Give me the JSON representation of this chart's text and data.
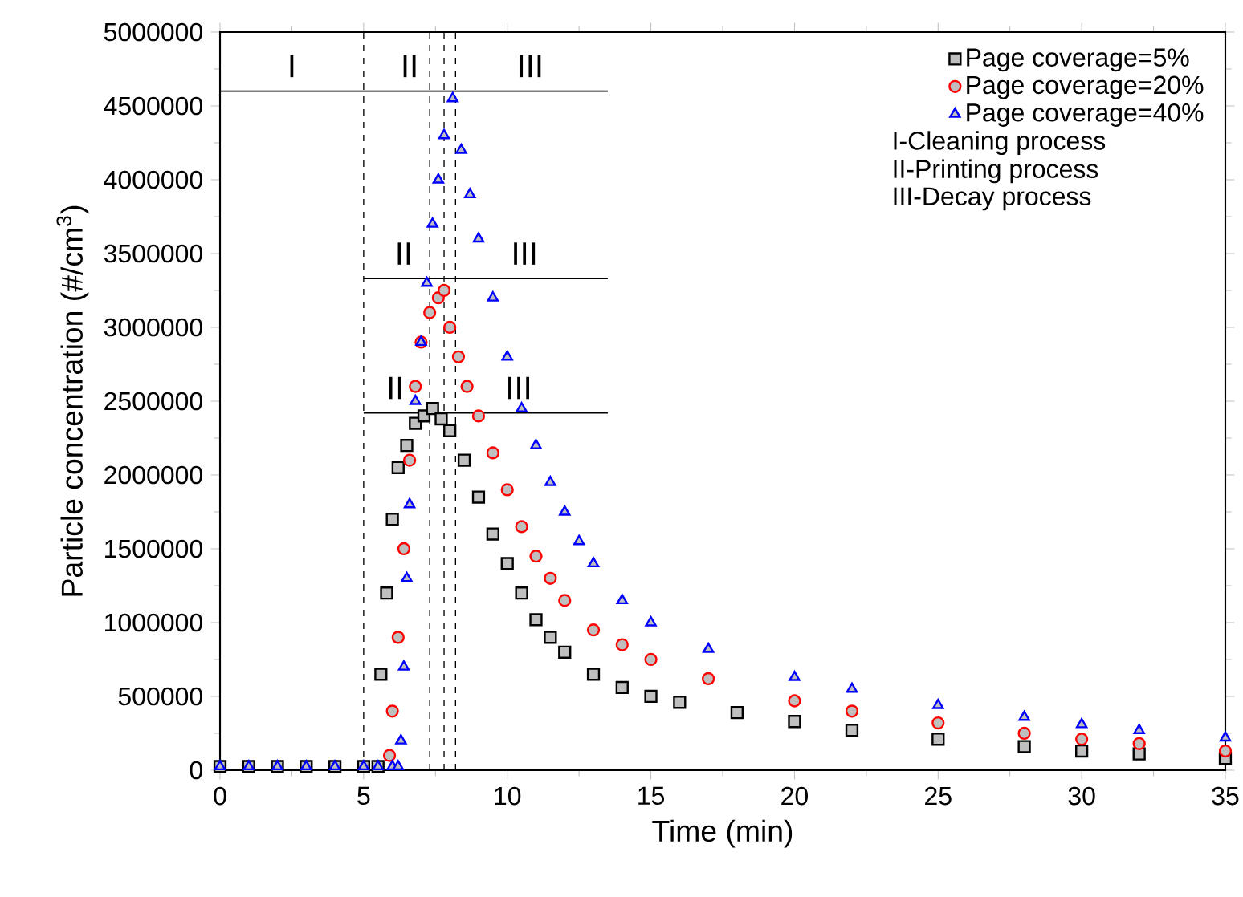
{
  "chart_data": {
    "type": "scatter",
    "xlabel": "Time (min)",
    "ylabel": "Particle concentration (#/cm$^{3}$)",
    "xlim": [
      0,
      35
    ],
    "ylim": [
      0,
      5000000
    ],
    "xticks": [
      0,
      5,
      10,
      15,
      20,
      25,
      30,
      35
    ],
    "yticks": [
      0,
      500000,
      1000000,
      1500000,
      2000000,
      2500000,
      3000000,
      3500000,
      4000000,
      4500000,
      5000000
    ],
    "legend": "top right",
    "grid": false,
    "series": [
      {
        "name": "Page coverage=5%",
        "marker": "square",
        "color": "#000000",
        "x": [
          0,
          1,
          2,
          3,
          4,
          5,
          5.5,
          5.6,
          5.8,
          6.0,
          6.2,
          6.5,
          6.8,
          7.1,
          7.4,
          7.7,
          8.0,
          8.5,
          9,
          9.5,
          10,
          10.5,
          11,
          11.5,
          12,
          13,
          14,
          15,
          16,
          18,
          20,
          22,
          25,
          28,
          30,
          32,
          35
        ],
        "values": [
          25000,
          25000,
          25000,
          25000,
          25000,
          25000,
          25000,
          650000,
          1200000,
          1700000,
          2050000,
          2200000,
          2350000,
          2400000,
          2450000,
          2380000,
          2300000,
          2100000,
          1850000,
          1600000,
          1400000,
          1200000,
          1020000,
          900000,
          800000,
          650000,
          560000,
          500000,
          460000,
          390000,
          330000,
          270000,
          210000,
          160000,
          130000,
          110000,
          80000
        ]
      },
      {
        "name": "Page coverage=20%",
        "marker": "circle",
        "color": "#ff0000",
        "x": [
          5.9,
          6.0,
          6.2,
          6.4,
          6.6,
          6.8,
          7.0,
          7.3,
          7.6,
          7.8,
          8.0,
          8.3,
          8.6,
          9,
          9.5,
          10,
          10.5,
          11,
          11.5,
          12,
          13,
          14,
          15,
          17,
          20,
          22,
          25,
          28,
          30,
          32,
          35
        ],
        "values": [
          100000,
          400000,
          900000,
          1500000,
          2100000,
          2600000,
          2900000,
          3100000,
          3200000,
          3250000,
          3000000,
          2800000,
          2600000,
          2400000,
          2150000,
          1900000,
          1650000,
          1450000,
          1300000,
          1150000,
          950000,
          850000,
          750000,
          620000,
          470000,
          400000,
          320000,
          250000,
          210000,
          180000,
          130000
        ]
      },
      {
        "name": "Page coverage=40%",
        "marker": "triangle",
        "color": "#0000ff",
        "x": [
          0,
          1,
          2,
          3,
          4,
          5,
          5.5,
          6.0,
          6.2,
          6.3,
          6.4,
          6.5,
          6.6,
          6.8,
          7.0,
          7.2,
          7.4,
          7.6,
          7.8,
          8.1,
          8.4,
          8.7,
          9,
          9.5,
          10,
          10.5,
          11,
          11.5,
          12,
          12.5,
          13,
          14,
          15,
          17,
          20,
          22,
          25,
          28,
          30,
          32,
          35
        ],
        "values": [
          25000,
          25000,
          25000,
          25000,
          25000,
          25000,
          25000,
          25000,
          25000,
          200000,
          700000,
          1300000,
          1800000,
          2500000,
          2900000,
          3300000,
          3700000,
          4000000,
          4300000,
          4550000,
          4200000,
          3900000,
          3600000,
          3200000,
          2800000,
          2450000,
          2200000,
          1950000,
          1750000,
          1550000,
          1400000,
          1150000,
          1000000,
          820000,
          630000,
          550000,
          440000,
          360000,
          310000,
          270000,
          220000
        ]
      },
      {
        "type": "line",
        "color": "#000000",
        "x": [
          0,
          5,
          8.2,
          13.5
        ],
        "values": [
          4600000,
          4600000,
          4600000,
          4600000
        ]
      },
      {
        "type": "line",
        "color": "#000000",
        "x": [
          5,
          7.8,
          13.5
        ],
        "values": [
          3330000,
          3330000,
          3330000
        ]
      },
      {
        "type": "line",
        "color": "#000000",
        "x": [
          5,
          7.3,
          13.5
        ],
        "values": [
          2420000,
          2420000,
          2420000
        ]
      }
    ],
    "ref_lines": [
      {
        "axis": "x",
        "value": 5,
        "color": "#000000",
        "line_style": "dashed"
      },
      {
        "axis": "x",
        "value": 7.3,
        "color": "#000000",
        "line_style": "dashed"
      },
      {
        "axis": "x",
        "value": 7.8,
        "color": "#000000",
        "line_style": "dashed"
      },
      {
        "axis": "x",
        "value": 8.2,
        "color": "#000000",
        "line_style": "dashed"
      }
    ],
    "annotations": [
      {
        "text": "I",
        "x": 2.5,
        "y": 4600000
      },
      {
        "text": "II",
        "x": 6.6,
        "y": 4600000
      },
      {
        "text": "III",
        "x": 10.8,
        "y": 4600000
      },
      {
        "text": "II",
        "x": 6.4,
        "y": 3330000
      },
      {
        "text": "III",
        "x": 10.6,
        "y": 3330000
      },
      {
        "text": "II",
        "x": 6.1,
        "y": 2420000
      },
      {
        "text": "III",
        "x": 10.4,
        "y": 2420000
      },
      "I-Cleaning process",
      "II-Printing process",
      "III-Decay process"
    ]
  }
}
